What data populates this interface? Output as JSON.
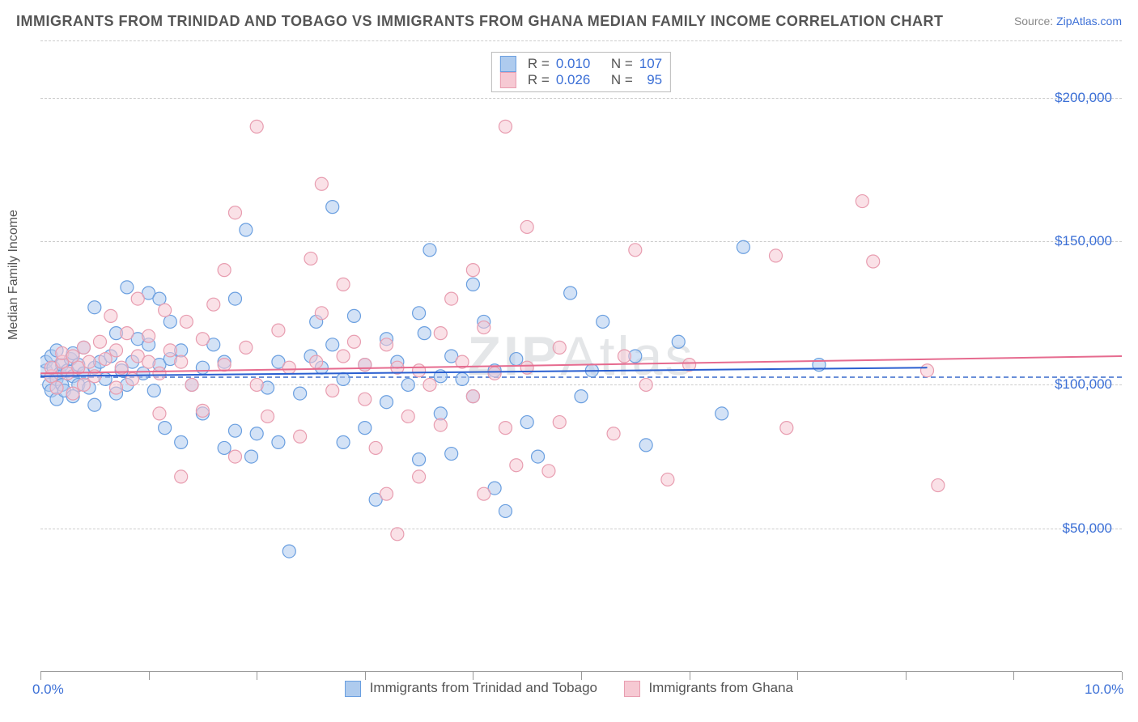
{
  "title": "IMMIGRANTS FROM TRINIDAD AND TOBAGO VS IMMIGRANTS FROM GHANA MEDIAN FAMILY INCOME CORRELATION CHART",
  "source_label": "Source:",
  "source_link": "ZipAtlas.com",
  "y_axis_label": "Median Family Income",
  "watermark": "ZIPAtlas",
  "chart": {
    "type": "scatter",
    "xlim": [
      0,
      10
    ],
    "ylim": [
      0,
      220000
    ],
    "x_tick_label_left": "0.0%",
    "x_tick_label_right": "10.0%",
    "x_ticks": [
      0,
      1,
      2,
      3,
      4,
      5,
      6,
      7,
      8,
      9,
      10
    ],
    "y_ticks": [
      {
        "value": 50000,
        "label": "$50,000"
      },
      {
        "value": 100000,
        "label": "$100,000"
      },
      {
        "value": 150000,
        "label": "$150,000"
      },
      {
        "value": 200000,
        "label": "$200,000"
      }
    ],
    "reference_y": 103000,
    "grid_color": "#cccccc",
    "background_color": "#ffffff",
    "point_radius": 8,
    "point_opacity": 0.55,
    "series": [
      {
        "name": "Immigrants from Trinidad and Tobago",
        "color_fill": "#aecbee",
        "color_stroke": "#6a9fe0",
        "r_label": "R = ",
        "r_value": "0.010",
        "n_label": "N = ",
        "n_value": "107",
        "trend": {
          "x1": 0,
          "y1": 103000,
          "x2": 8.2,
          "y2": 106000,
          "color": "#2a5fd0",
          "width": 2
        },
        "points": [
          [
            0.05,
            105000
          ],
          [
            0.05,
            108000
          ],
          [
            0.08,
            100000
          ],
          [
            0.1,
            103000
          ],
          [
            0.1,
            98000
          ],
          [
            0.1,
            110000
          ],
          [
            0.12,
            106000
          ],
          [
            0.15,
            95000
          ],
          [
            0.15,
            112000
          ],
          [
            0.15,
            102000
          ],
          [
            0.18,
            104000
          ],
          [
            0.2,
            107000
          ],
          [
            0.2,
            100000
          ],
          [
            0.22,
            98000
          ],
          [
            0.25,
            105000
          ],
          [
            0.28,
            109000
          ],
          [
            0.3,
            103000
          ],
          [
            0.3,
            96000
          ],
          [
            0.3,
            111000
          ],
          [
            0.35,
            100000
          ],
          [
            0.35,
            107000
          ],
          [
            0.4,
            104000
          ],
          [
            0.4,
            113000
          ],
          [
            0.45,
            99000
          ],
          [
            0.5,
            106000
          ],
          [
            0.5,
            127000
          ],
          [
            0.5,
            93000
          ],
          [
            0.55,
            108000
          ],
          [
            0.6,
            102000
          ],
          [
            0.65,
            110000
          ],
          [
            0.7,
            97000
          ],
          [
            0.7,
            118000
          ],
          [
            0.75,
            105000
          ],
          [
            0.8,
            134000
          ],
          [
            0.8,
            100000
          ],
          [
            0.85,
            108000
          ],
          [
            0.9,
            116000
          ],
          [
            0.95,
            104000
          ],
          [
            1.0,
            132000
          ],
          [
            1.0,
            114000
          ],
          [
            1.05,
            98000
          ],
          [
            1.1,
            107000
          ],
          [
            1.1,
            130000
          ],
          [
            1.15,
            85000
          ],
          [
            1.2,
            109000
          ],
          [
            1.2,
            122000
          ],
          [
            1.3,
            80000
          ],
          [
            1.3,
            112000
          ],
          [
            1.4,
            100000
          ],
          [
            1.5,
            106000
          ],
          [
            1.5,
            90000
          ],
          [
            1.6,
            114000
          ],
          [
            1.7,
            78000
          ],
          [
            1.7,
            108000
          ],
          [
            1.8,
            84000
          ],
          [
            1.8,
            130000
          ],
          [
            1.9,
            154000
          ],
          [
            1.95,
            75000
          ],
          [
            2.0,
            83000
          ],
          [
            2.1,
            99000
          ],
          [
            2.2,
            108000
          ],
          [
            2.2,
            80000
          ],
          [
            2.3,
            42000
          ],
          [
            2.4,
            97000
          ],
          [
            2.5,
            110000
          ],
          [
            2.55,
            122000
          ],
          [
            2.6,
            106000
          ],
          [
            2.7,
            162000
          ],
          [
            2.7,
            114000
          ],
          [
            2.8,
            102000
          ],
          [
            2.8,
            80000
          ],
          [
            2.9,
            124000
          ],
          [
            3.0,
            85000
          ],
          [
            3.0,
            107000
          ],
          [
            3.1,
            60000
          ],
          [
            3.2,
            116000
          ],
          [
            3.2,
            94000
          ],
          [
            3.3,
            108000
          ],
          [
            3.4,
            100000
          ],
          [
            3.5,
            125000
          ],
          [
            3.5,
            74000
          ],
          [
            3.55,
            118000
          ],
          [
            3.6,
            147000
          ],
          [
            3.7,
            103000
          ],
          [
            3.7,
            90000
          ],
          [
            3.8,
            76000
          ],
          [
            3.8,
            110000
          ],
          [
            3.9,
            102000
          ],
          [
            4.0,
            96000
          ],
          [
            4.0,
            135000
          ],
          [
            4.1,
            122000
          ],
          [
            4.2,
            105000
          ],
          [
            4.2,
            64000
          ],
          [
            4.3,
            56000
          ],
          [
            4.4,
            109000
          ],
          [
            4.5,
            87000
          ],
          [
            4.6,
            75000
          ],
          [
            4.9,
            132000
          ],
          [
            5.0,
            96000
          ],
          [
            5.1,
            105000
          ],
          [
            5.2,
            122000
          ],
          [
            5.5,
            110000
          ],
          [
            5.6,
            79000
          ],
          [
            5.9,
            115000
          ],
          [
            6.3,
            90000
          ],
          [
            6.5,
            148000
          ],
          [
            7.2,
            107000
          ]
        ]
      },
      {
        "name": "Immigrants from Ghana",
        "color_fill": "#f6c9d3",
        "color_stroke": "#e89db0",
        "r_label": "R = ",
        "r_value": "0.026",
        "n_label": "N = ",
        "n_value": "95",
        "trend": {
          "x1": 0,
          "y1": 104000,
          "x2": 10,
          "y2": 110000,
          "color": "#e66b8f",
          "width": 2
        },
        "points": [
          [
            0.1,
            103000
          ],
          [
            0.1,
            106000
          ],
          [
            0.15,
            99000
          ],
          [
            0.2,
            108000
          ],
          [
            0.2,
            111000
          ],
          [
            0.25,
            104000
          ],
          [
            0.3,
            110000
          ],
          [
            0.3,
            97000
          ],
          [
            0.35,
            106000
          ],
          [
            0.4,
            113000
          ],
          [
            0.4,
            100000
          ],
          [
            0.45,
            108000
          ],
          [
            0.5,
            103000
          ],
          [
            0.55,
            115000
          ],
          [
            0.6,
            109000
          ],
          [
            0.65,
            124000
          ],
          [
            0.7,
            99000
          ],
          [
            0.7,
            112000
          ],
          [
            0.75,
            106000
          ],
          [
            0.8,
            118000
          ],
          [
            0.85,
            102000
          ],
          [
            0.9,
            110000
          ],
          [
            0.9,
            130000
          ],
          [
            1.0,
            108000
          ],
          [
            1.0,
            117000
          ],
          [
            1.1,
            104000
          ],
          [
            1.1,
            90000
          ],
          [
            1.15,
            126000
          ],
          [
            1.2,
            112000
          ],
          [
            1.3,
            108000
          ],
          [
            1.3,
            68000
          ],
          [
            1.35,
            122000
          ],
          [
            1.4,
            100000
          ],
          [
            1.5,
            116000
          ],
          [
            1.5,
            91000
          ],
          [
            1.6,
            128000
          ],
          [
            1.7,
            140000
          ],
          [
            1.7,
            107000
          ],
          [
            1.8,
            160000
          ],
          [
            1.8,
            75000
          ],
          [
            1.9,
            113000
          ],
          [
            2.0,
            190000
          ],
          [
            2.0,
            100000
          ],
          [
            2.1,
            89000
          ],
          [
            2.2,
            119000
          ],
          [
            2.3,
            106000
          ],
          [
            2.4,
            82000
          ],
          [
            2.5,
            144000
          ],
          [
            2.55,
            108000
          ],
          [
            2.6,
            125000
          ],
          [
            2.6,
            170000
          ],
          [
            2.7,
            98000
          ],
          [
            2.8,
            110000
          ],
          [
            2.8,
            135000
          ],
          [
            2.9,
            115000
          ],
          [
            3.0,
            95000
          ],
          [
            3.0,
            107000
          ],
          [
            3.1,
            78000
          ],
          [
            3.2,
            114000
          ],
          [
            3.2,
            62000
          ],
          [
            3.3,
            48000
          ],
          [
            3.3,
            106000
          ],
          [
            3.4,
            89000
          ],
          [
            3.5,
            105000
          ],
          [
            3.5,
            68000
          ],
          [
            3.6,
            100000
          ],
          [
            3.7,
            86000
          ],
          [
            3.7,
            118000
          ],
          [
            3.8,
            130000
          ],
          [
            3.9,
            108000
          ],
          [
            4.0,
            96000
          ],
          [
            4.0,
            140000
          ],
          [
            4.1,
            120000
          ],
          [
            4.1,
            62000
          ],
          [
            4.2,
            104000
          ],
          [
            4.3,
            85000
          ],
          [
            4.3,
            190000
          ],
          [
            4.4,
            72000
          ],
          [
            4.5,
            106000
          ],
          [
            4.5,
            155000
          ],
          [
            4.7,
            70000
          ],
          [
            4.8,
            113000
          ],
          [
            4.8,
            87000
          ],
          [
            5.3,
            83000
          ],
          [
            5.4,
            110000
          ],
          [
            5.5,
            147000
          ],
          [
            5.6,
            100000
          ],
          [
            5.8,
            67000
          ],
          [
            6.0,
            107000
          ],
          [
            6.8,
            145000
          ],
          [
            6.9,
            85000
          ],
          [
            7.6,
            164000
          ],
          [
            7.7,
            143000
          ],
          [
            8.2,
            105000
          ],
          [
            8.3,
            65000
          ]
        ]
      }
    ]
  },
  "legend_bottom": [
    {
      "label": "Immigrants from Trinidad and Tobago",
      "fill": "#aecbee",
      "stroke": "#6a9fe0"
    },
    {
      "label": "Immigrants from Ghana",
      "fill": "#f6c9d3",
      "stroke": "#e89db0"
    }
  ]
}
